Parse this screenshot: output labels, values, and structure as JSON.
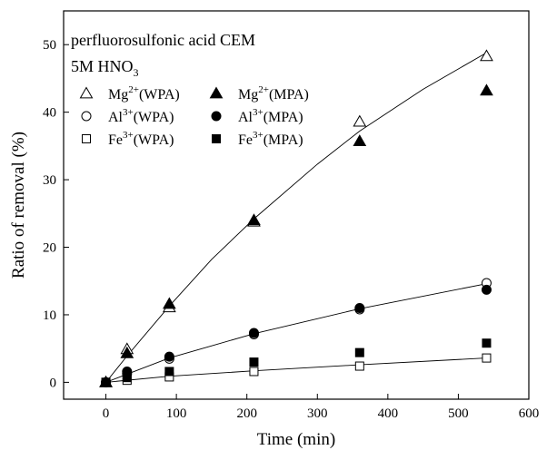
{
  "chart_data": {
    "type": "scatter",
    "title": "",
    "xlabel": "Time (min)",
    "ylabel": "Ratio of removal (%)",
    "xlim": [
      -60,
      600
    ],
    "ylim": [
      -2.5,
      55
    ],
    "xticks": [
      0,
      100,
      200,
      300,
      400,
      500,
      600
    ],
    "yticks": [
      0,
      10,
      20,
      30,
      40,
      50
    ],
    "grid": false,
    "legend_position": "top-left",
    "annotation_line1": "perfluorosulfonic acid CEM",
    "annotation_line2_main": "5M HNO",
    "annotation_line2_sub": "3",
    "series": [
      {
        "name_main": "Mg",
        "name_sup": "2+",
        "name_suffix": "(WPA)",
        "marker": "triangle-open",
        "x": [
          0,
          30,
          90,
          210,
          360,
          540
        ],
        "y": [
          0.0,
          4.9,
          11.1,
          23.8,
          38.6,
          48.3
        ]
      },
      {
        "name_main": "Mg",
        "name_sup": "2+",
        "name_suffix": "(MPA)",
        "marker": "triangle-filled",
        "x": [
          0,
          30,
          90,
          210,
          360,
          540
        ],
        "y": [
          0.0,
          4.3,
          11.6,
          24.0,
          35.7,
          43.2
        ]
      },
      {
        "name_main": "Al",
        "name_sup": "3+",
        "name_suffix": "(WPA)",
        "marker": "circle-open",
        "x": [
          0,
          30,
          90,
          210,
          360,
          540
        ],
        "y": [
          0.0,
          1.3,
          3.5,
          7.1,
          10.8,
          14.7
        ]
      },
      {
        "name_main": "Al",
        "name_sup": "3+",
        "name_suffix": "(MPA)",
        "marker": "circle-filled",
        "x": [
          0,
          30,
          90,
          210,
          360,
          540
        ],
        "y": [
          0.0,
          1.6,
          3.8,
          7.3,
          11.0,
          13.7
        ]
      },
      {
        "name_main": "Fe",
        "name_sup": "3+",
        "name_suffix": "(WPA)",
        "marker": "square-open",
        "x": [
          0,
          30,
          90,
          210,
          360,
          540
        ],
        "y": [
          0.0,
          0.3,
          0.8,
          1.6,
          2.4,
          3.6
        ]
      },
      {
        "name_main": "Fe",
        "name_sup": "3+",
        "name_suffix": "(MPA)",
        "marker": "square-filled",
        "x": [
          0,
          30,
          90,
          210,
          360,
          540
        ],
        "y": [
          0.0,
          0.7,
          1.6,
          3.0,
          4.4,
          5.8
        ]
      }
    ],
    "fit_lines": [
      {
        "x": [
          0,
          30,
          90,
          150,
          210,
          300,
          360,
          450,
          540
        ],
        "y": [
          0.0,
          3.9,
          11.3,
          18.2,
          24.2,
          32.3,
          37.2,
          43.4,
          48.8
        ]
      },
      {
        "x": [
          0,
          90,
          210,
          360,
          540
        ],
        "y": [
          0.0,
          3.6,
          7.2,
          10.9,
          14.6
        ]
      },
      {
        "x": [
          0,
          90,
          210,
          360,
          540
        ],
        "y": [
          0.0,
          0.9,
          1.7,
          2.6,
          3.6
        ]
      }
    ]
  }
}
